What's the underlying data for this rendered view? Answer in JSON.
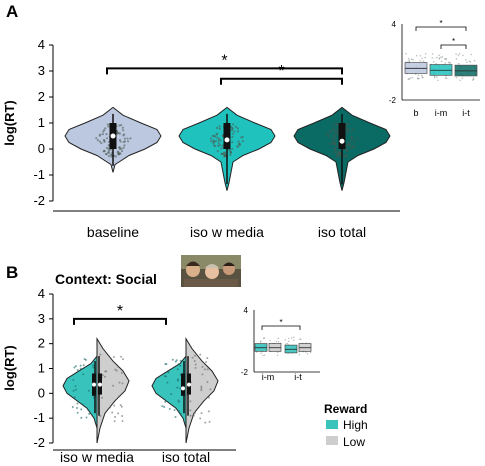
{
  "panel_a": {
    "letter": "A"
  },
  "panel_b": {
    "letter": "B",
    "context_title": "Context: Social"
  },
  "colors": {
    "baseline": "#bcc8e0",
    "iso_w_media": "#20c2be",
    "iso_total": "#0a6a64",
    "high": "#39c3bd",
    "low": "#cecece"
  },
  "legend": {
    "title": "Reward",
    "items": [
      {
        "label": "High",
        "color": "#39c3bd"
      },
      {
        "label": "Low",
        "color": "#cecece"
      }
    ]
  },
  "chart_data": [
    {
      "type": "violin",
      "panel": "A",
      "ylabel": "log(RT)",
      "ylim": [
        -2,
        4
      ],
      "yticks": [
        "-2",
        "-1",
        "0",
        "1",
        "2",
        "3",
        "4"
      ],
      "categories": [
        "baseline",
        "iso w media",
        "iso total"
      ],
      "series": [
        {
          "category": "baseline",
          "median": 0.5,
          "min": -0.9,
          "max": 1.6
        },
        {
          "category": "iso w media",
          "median": 0.35,
          "min": -1.6,
          "max": 1.6
        },
        {
          "category": "iso total",
          "median": 0.3,
          "min": -1.6,
          "max": 1.6
        }
      ],
      "significance": [
        {
          "from": "baseline",
          "to": "iso total",
          "y": 3.1,
          "label": "*"
        },
        {
          "from": "iso w media",
          "to": "iso total",
          "y": 2.7,
          "label": "*"
        }
      ]
    },
    {
      "type": "box",
      "panel": "A-inset",
      "ylim": [
        -2,
        4
      ],
      "yticks": [
        "4",
        "-2"
      ],
      "categories": [
        "b",
        "i-m",
        "i-t"
      ],
      "series": [
        {
          "category": "b",
          "median": 0.5
        },
        {
          "category": "i-m",
          "median": 0.35
        },
        {
          "category": "i-t",
          "median": 0.3
        }
      ],
      "significance": [
        {
          "from": "b",
          "to": "i-t",
          "label": "*"
        },
        {
          "from": "i-m",
          "to": "i-t",
          "label": "*"
        }
      ]
    },
    {
      "type": "violin",
      "panel": "B",
      "ylabel": "log(RT)",
      "ylim": [
        -2,
        4
      ],
      "yticks": [
        "-2",
        "-1",
        "0",
        "1",
        "2",
        "3",
        "4"
      ],
      "categories": [
        "iso w media",
        "iso total"
      ],
      "series": [
        {
          "name": "High",
          "values": [
            0.35,
            0.2
          ]
        },
        {
          "name": "Low",
          "values": [
            0.35,
            0.35
          ]
        }
      ],
      "significance": [
        {
          "from": "iso w media",
          "to": "iso w media",
          "y": 3.0,
          "label": "*"
        }
      ]
    },
    {
      "type": "box",
      "panel": "B-inset",
      "ylim": [
        -2,
        4
      ],
      "yticks": [
        "4",
        "-2"
      ],
      "categories": [
        "i-m",
        "i-t"
      ],
      "series": [
        {
          "name": "High",
          "values": [
            0.35,
            0.2
          ]
        },
        {
          "name": "Low",
          "values": [
            0.35,
            0.35
          ]
        }
      ],
      "significance": [
        {
          "from": "i-m",
          "to": "i-m",
          "label": "*"
        }
      ]
    }
  ]
}
